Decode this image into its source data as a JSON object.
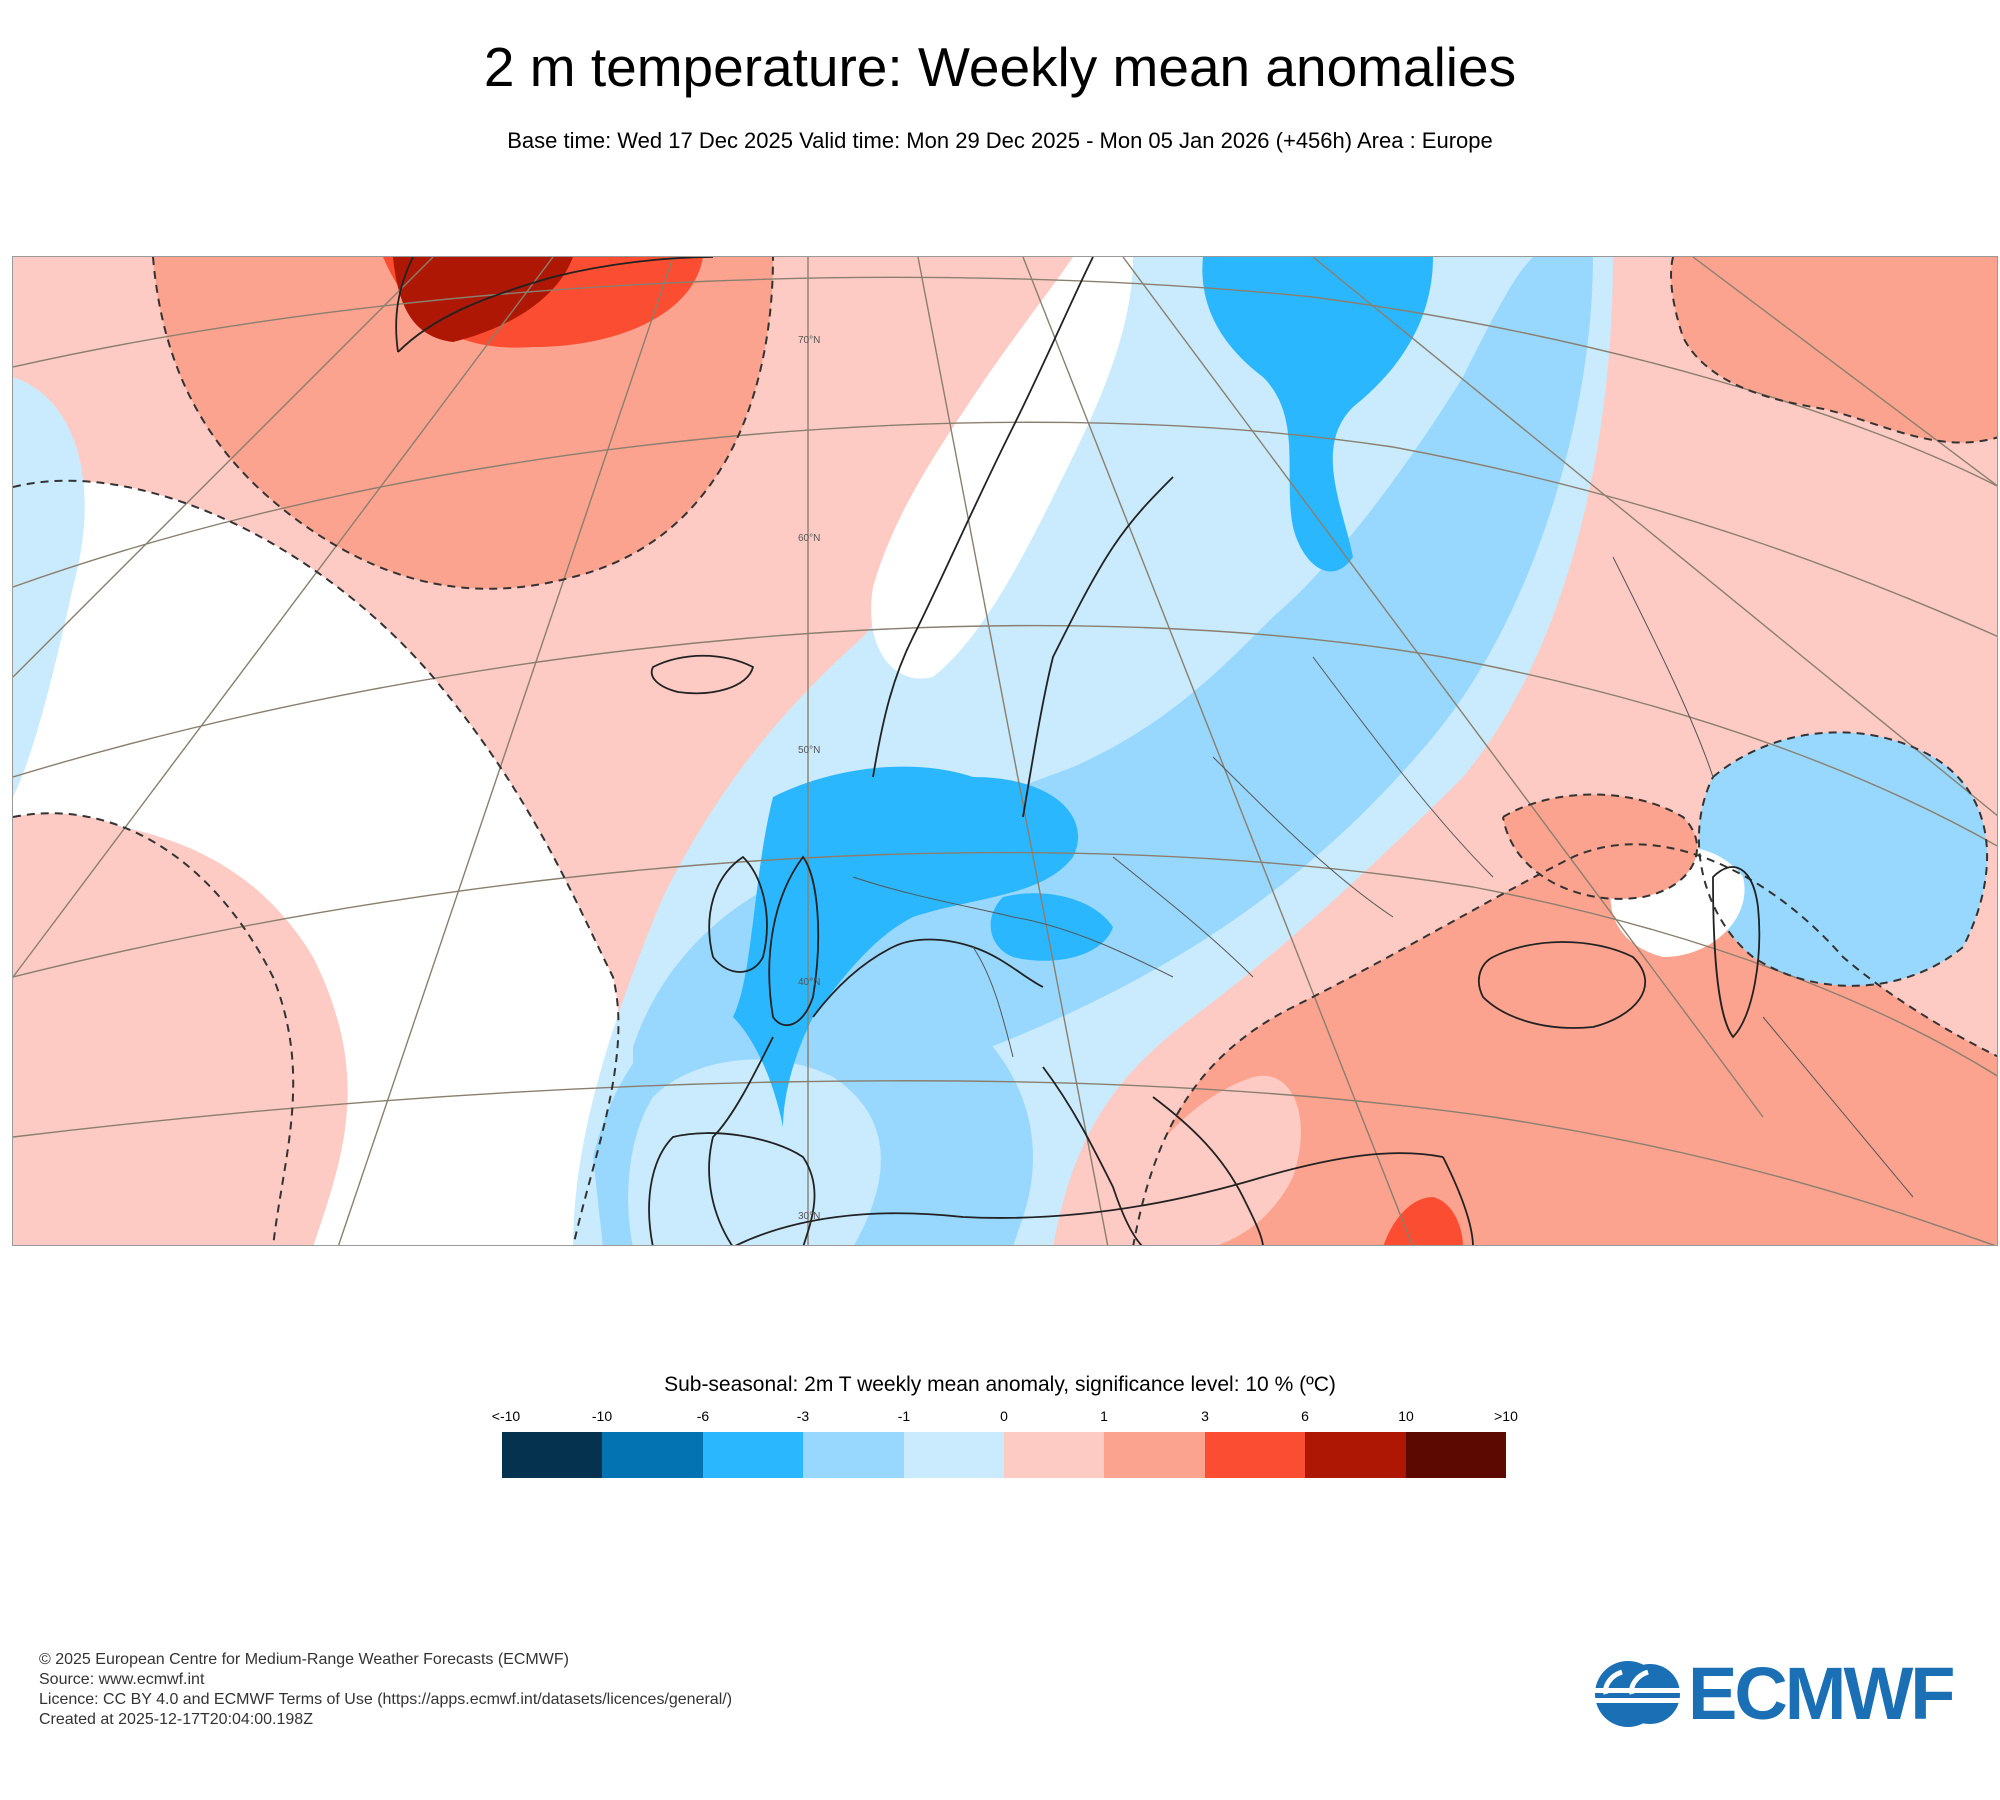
{
  "header": {
    "title": "2 m temperature: Weekly mean anomalies",
    "subtitle": "Base time: Wed 17 Dec 2025 Valid time: Mon 29 Dec 2025 - Mon 05 Jan 2026 (+456h) Area : Europe"
  },
  "map": {
    "latitude_labels": [
      "70°N",
      "60°N",
      "50°N",
      "40°N",
      "30°N"
    ],
    "colors": {
      "sea_outline": "#000000",
      "graticule": "#8a7f6e",
      "border": "#555555"
    }
  },
  "legend": {
    "title": "Sub-seasonal: 2m T weekly mean anomaly, significance level: 10 % (ºC)",
    "tick_labels": [
      "<-10",
      "-10",
      "-6",
      "-3",
      "-1",
      "0",
      "1",
      "3",
      "6",
      "10",
      ">10"
    ],
    "colors": [
      "#04324f",
      "#0473b2",
      "#2ab7fe",
      "#99d8fe",
      "#c9ebfd",
      "#fecbc4",
      "#fca38f",
      "#fb4d31",
      "#ae1703",
      "#5c0a01"
    ]
  },
  "footer": {
    "lines": [
      "© 2025 European Centre for Medium-Range Weather Forecasts (ECMWF)",
      "Source: www.ecmwf.int",
      "Licence: CC BY 4.0 and ECMWF Terms of Use (https://apps.ecmwf.int/datasets/licences/general/)",
      "Created at 2025-12-17T20:04:00.198Z"
    ]
  },
  "logo": {
    "text": "ECMWF",
    "color": "#1a6fb5"
  }
}
